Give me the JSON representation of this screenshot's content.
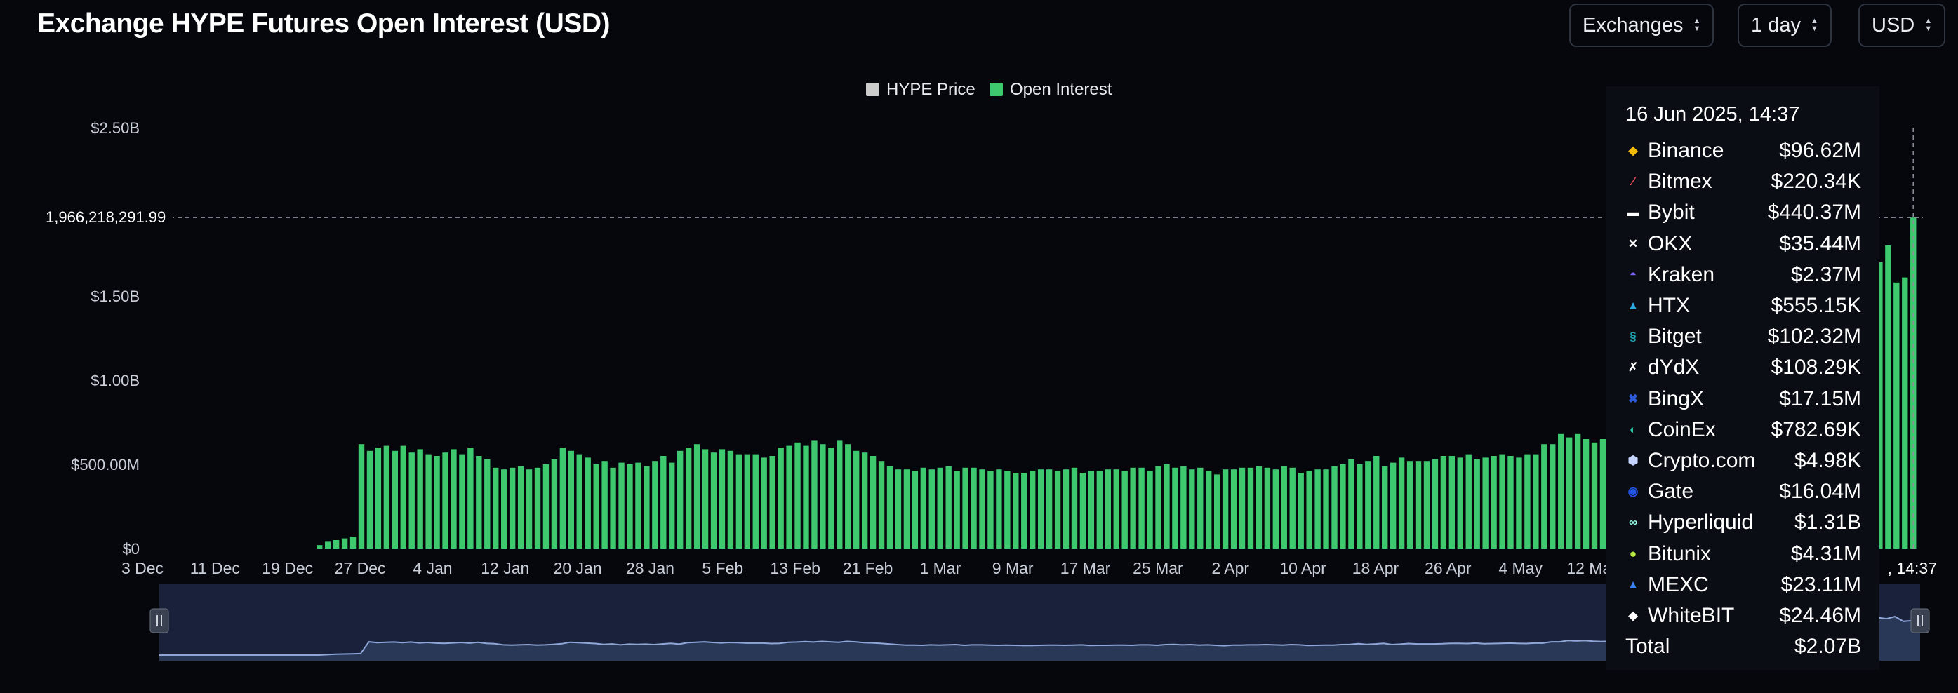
{
  "title": "Exchange HYPE Futures Open Interest (USD)",
  "controls": {
    "exchanges_label": "Exchanges",
    "interval_label": "1 day",
    "currency_label": "USD"
  },
  "chart_data": {
    "type": "bar",
    "title": "Exchange HYPE Futures Open Interest (USD)",
    "legend": [
      {
        "name": "HYPE Price",
        "color": "#cccccc"
      },
      {
        "name": "Open Interest",
        "color": "#3ec96e"
      }
    ],
    "legend_position": "top-center",
    "y_ticks": [
      "$0",
      "$500.00M",
      "$1.00B",
      "$1.50B",
      "$2.50B"
    ],
    "y_tick_values": [
      0,
      500000000,
      1000000000,
      1500000000,
      2500000000
    ],
    "ylim": [
      0,
      2500000000
    ],
    "x_ticks": [
      "3 Dec",
      "11 Dec",
      "19 Dec",
      "27 Dec",
      "4 Jan",
      "12 Jan",
      "20 Jan",
      "28 Jan",
      "5 Feb",
      "13 Feb",
      "21 Feb",
      "1 Mar",
      "9 Mar",
      "17 Mar",
      "25 Mar",
      "2 Apr",
      "10 Apr",
      "18 Apr",
      "26 Apr",
      "4 May",
      "12 May"
    ],
    "x_tick_end_label": ", 14:37",
    "crosshair_value": "1,966,218,291.99",
    "crosshair_numeric": 1966218291.99,
    "series": [
      {
        "name": "Open Interest",
        "color": "#3ec96e",
        "values_millions": [
          0,
          0,
          0,
          0,
          0,
          0,
          0,
          0,
          0,
          0,
          0,
          0,
          0,
          0,
          0,
          0,
          0,
          0,
          0,
          0,
          20,
          40,
          50,
          60,
          70,
          620,
          580,
          600,
          610,
          580,
          610,
          570,
          590,
          560,
          550,
          570,
          590,
          560,
          600,
          550,
          530,
          480,
          470,
          480,
          490,
          470,
          480,
          500,
          530,
          600,
          580,
          560,
          540,
          500,
          520,
          480,
          510,
          500,
          510,
          490,
          520,
          550,
          510,
          580,
          600,
          620,
          590,
          570,
          590,
          580,
          560,
          560,
          560,
          540,
          550,
          600,
          610,
          630,
          610,
          640,
          620,
          600,
          640,
          620,
          580,
          570,
          550,
          520,
          490,
          470,
          470,
          460,
          480,
          470,
          480,
          490,
          460,
          480,
          480,
          470,
          460,
          470,
          460,
          450,
          450,
          460,
          470,
          470,
          460,
          470,
          480,
          450,
          460,
          460,
          470,
          470,
          460,
          480,
          480,
          460,
          490,
          500,
          480,
          490,
          470,
          480,
          460,
          440,
          470,
          470,
          480,
          480,
          490,
          480,
          470,
          490,
          480,
          450,
          460,
          470,
          470,
          490,
          500,
          530,
          500,
          520,
          550,
          490,
          510,
          540,
          520,
          520,
          520,
          530,
          550,
          550,
          540,
          560,
          530,
          540,
          550,
          560,
          550,
          540,
          560,
          560,
          620,
          620,
          680,
          660,
          680,
          650,
          630,
          650,
          660,
          700,
          630,
          690,
          720,
          770,
          800,
          860,
          920,
          880,
          900,
          880,
          1400,
          1450,
          1500,
          1350,
          1380,
          1600,
          1750,
          1850,
          1900,
          1950,
          1700,
          1800,
          1700,
          1800,
          1850,
          1750,
          1600,
          1400,
          1600,
          1750,
          1700,
          1800,
          1580,
          1610,
          1966
        ],
        "values_unit": "millions USD"
      }
    ],
    "navigator": {
      "start_handle": "left",
      "end_handle": "right"
    }
  },
  "tooltip": {
    "date": "16 Jun 2025, 14:37",
    "rows": [
      {
        "name": "Binance",
        "value": "$96.62M",
        "icon": "binance-icon",
        "color": "#f0b90b"
      },
      {
        "name": "Bitmex",
        "value": "$220.34K",
        "icon": "bitmex-icon",
        "color": "#e8505b"
      },
      {
        "name": "Bybit",
        "value": "$440.37M",
        "icon": "bybit-icon",
        "color": "#ffffff"
      },
      {
        "name": "OKX",
        "value": "$35.44M",
        "icon": "okx-icon",
        "color": "#ffffff"
      },
      {
        "name": "Kraken",
        "value": "$2.37M",
        "icon": "kraken-icon",
        "color": "#7b61ff"
      },
      {
        "name": "HTX",
        "value": "$555.15K",
        "icon": "htx-icon",
        "color": "#2ea8e0"
      },
      {
        "name": "Bitget",
        "value": "$102.32M",
        "icon": "bitget-icon",
        "color": "#1da2b4"
      },
      {
        "name": "dYdX",
        "value": "$108.29K",
        "icon": "dydx-icon",
        "color": "#ffffff"
      },
      {
        "name": "BingX",
        "value": "$17.15M",
        "icon": "bingx-icon",
        "color": "#2a5ada"
      },
      {
        "name": "CoinEx",
        "value": "$782.69K",
        "icon": "coinex-icon",
        "color": "#2bc4a4"
      },
      {
        "name": "Crypto.com",
        "value": "$4.98K",
        "icon": "cryptocom-icon",
        "color": "#c5d3ff"
      },
      {
        "name": "Gate",
        "value": "$16.04M",
        "icon": "gate-icon",
        "color": "#2354e6"
      },
      {
        "name": "Hyperliquid",
        "value": "$1.31B",
        "icon": "hyperliquid-icon",
        "color": "#97fce4"
      },
      {
        "name": "Bitunix",
        "value": "$4.31M",
        "icon": "bitunix-icon",
        "color": "#b8ea3c"
      },
      {
        "name": "MEXC",
        "value": "$23.11M",
        "icon": "mexc-icon",
        "color": "#3b82f6"
      },
      {
        "name": "WhiteBIT",
        "value": "$24.46M",
        "icon": "whitebit-icon",
        "color": "#ffffff"
      }
    ],
    "total_label": "Total",
    "total_value": "$2.07B"
  }
}
